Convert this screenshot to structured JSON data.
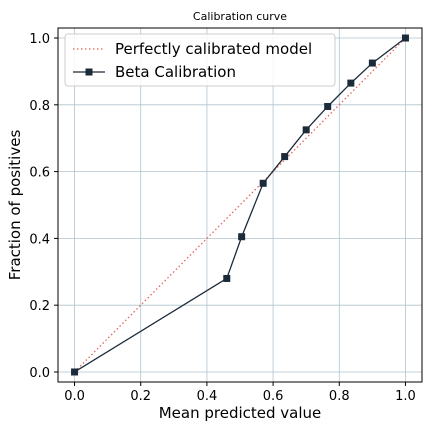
{
  "chart_data": {
    "type": "line",
    "title": "Calibration curve",
    "xlabel": "Mean predicted value",
    "ylabel": "Fraction of positives",
    "xlim": [
      -0.05,
      1.05
    ],
    "ylim": [
      -0.03,
      1.03
    ],
    "x_ticks": [
      0.0,
      0.2,
      0.4,
      0.6,
      0.8,
      1.0
    ],
    "y_ticks": [
      0.0,
      0.2,
      0.4,
      0.6,
      0.8,
      1.0
    ],
    "x_tick_labels": [
      "0.0",
      "0.2",
      "0.4",
      "0.6",
      "0.8",
      "1.0"
    ],
    "y_tick_labels": [
      "0.0",
      "0.2",
      "0.4",
      "0.6",
      "0.8",
      "1.0"
    ],
    "grid": true,
    "legend_position": "top-left",
    "series": [
      {
        "name": "Perfectly calibrated model",
        "style": "dotted",
        "color": "#e8635a",
        "x": [
          0.0,
          1.0
        ],
        "y": [
          0.0,
          1.0
        ]
      },
      {
        "name": "Beta Calibration",
        "style": "solid-square-markers",
        "color": "#1c2b3a",
        "x": [
          0.0,
          0.46,
          0.505,
          0.57,
          0.635,
          0.7,
          0.765,
          0.835,
          0.9,
          1.0
        ],
        "y": [
          0.0,
          0.28,
          0.405,
          0.565,
          0.645,
          0.725,
          0.795,
          0.865,
          0.925,
          1.0
        ]
      }
    ]
  }
}
